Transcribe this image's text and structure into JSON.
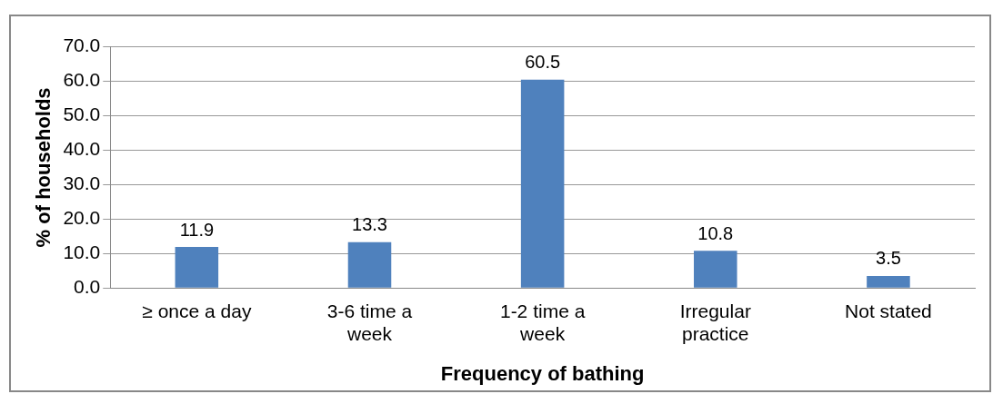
{
  "chart_data": {
    "type": "bar",
    "xlabel": "Frequency of bathing",
    "ylabel": "% of households",
    "categories": [
      "≥ once a day",
      "3-6 time a week",
      "1-2 time a week",
      "Irregular practice",
      "Not stated"
    ],
    "values": [
      11.9,
      13.3,
      60.5,
      10.8,
      3.5
    ],
    "color": "#4f81bd",
    "ylim": [
      0,
      70
    ],
    "yticks": [
      {
        "value": 0,
        "label": "0.0"
      },
      {
        "value": 10,
        "label": "10.0"
      },
      {
        "value": 20,
        "label": "20.0"
      },
      {
        "value": 30,
        "label": "30.0"
      },
      {
        "value": 40,
        "label": "40.0"
      },
      {
        "value": 50,
        "label": "50.0"
      },
      {
        "value": 60,
        "label": "60.0"
      },
      {
        "value": 70,
        "label": "70.0"
      }
    ],
    "grid": "y",
    "data_labels": true
  }
}
